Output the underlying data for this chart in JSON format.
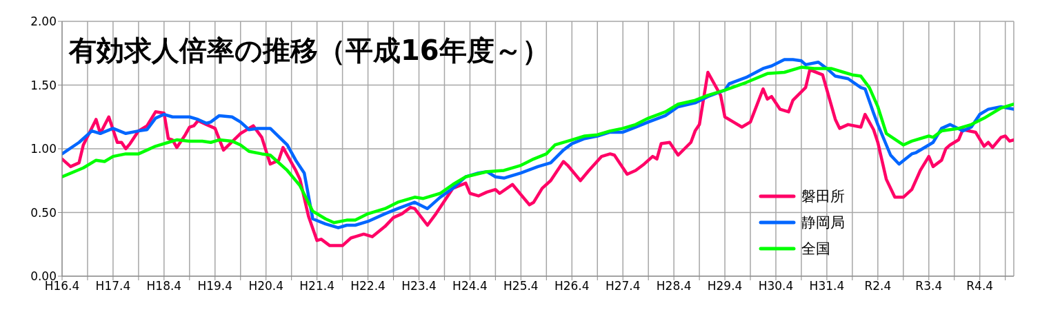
{
  "chart_data": {
    "type": "line",
    "title": "有効求人倍率の推移（平成16年度～）",
    "xlim": [
      "2004-04",
      "2022-12"
    ],
    "xticks": [
      {
        "value": "2004-04",
        "label": "H16.4"
      },
      {
        "value": "2004-10",
        "label": null
      },
      {
        "value": "2005-04",
        "label": "H17.4"
      },
      {
        "value": "2005-10",
        "label": null
      },
      {
        "value": "2006-04",
        "label": "H18.4"
      },
      {
        "value": "2006-10",
        "label": null
      },
      {
        "value": "2007-04",
        "label": "H19.4"
      },
      {
        "value": "2007-10",
        "label": null
      },
      {
        "value": "2008-04",
        "label": "H20.4"
      },
      {
        "value": "2008-10",
        "label": null
      },
      {
        "value": "2009-04",
        "label": "H21.4"
      },
      {
        "value": "2009-10",
        "label": null
      },
      {
        "value": "2010-04",
        "label": "H22.4"
      },
      {
        "value": "2010-10",
        "label": null
      },
      {
        "value": "2011-04",
        "label": "H23.4"
      },
      {
        "value": "2011-10",
        "label": null
      },
      {
        "value": "2012-04",
        "label": "H24.4"
      },
      {
        "value": "2012-10",
        "label": null
      },
      {
        "value": "2013-04",
        "label": "H25.4"
      },
      {
        "value": "2013-10",
        "label": null
      },
      {
        "value": "2014-04",
        "label": "H26.4"
      },
      {
        "value": "2014-10",
        "label": null
      },
      {
        "value": "2015-04",
        "label": "H27.4"
      },
      {
        "value": "2015-10",
        "label": null
      },
      {
        "value": "2016-04",
        "label": "H28.4"
      },
      {
        "value": "2016-10",
        "label": null
      },
      {
        "value": "2017-04",
        "label": "H29.4"
      },
      {
        "value": "2017-10",
        "label": null
      },
      {
        "value": "2018-04",
        "label": "H30.4"
      },
      {
        "value": "2018-10",
        "label": null
      },
      {
        "value": "2019-04",
        "label": "H31.4"
      },
      {
        "value": "2019-10",
        "label": null
      },
      {
        "value": "2020-04",
        "label": "R2.4"
      },
      {
        "value": "2020-10",
        "label": null
      },
      {
        "value": "2021-04",
        "label": "R3.4"
      },
      {
        "value": "2021-10",
        "label": null
      },
      {
        "value": "2022-04",
        "label": "R4.4"
      },
      {
        "value": "2022-10",
        "label": null
      }
    ],
    "ylim": [
      0,
      2
    ],
    "yticks": [
      {
        "value": 0,
        "label": "0.00"
      },
      {
        "value": 0.5,
        "label": "0.50"
      },
      {
        "value": 1,
        "label": "1.00"
      },
      {
        "value": 1.5,
        "label": "1.50"
      },
      {
        "value": 2,
        "label": "2.00"
      }
    ],
    "grid": true,
    "legend": "bottom right",
    "marker": "none",
    "line_style": "solid",
    "series": [
      {
        "name": "磐田所",
        "color": "#ff0066",
        "x": [
          "2004-04",
          "2004-06",
          "2004-08",
          "2004-09",
          "2004-12",
          "2005-01",
          "2005-03",
          "2005-05",
          "2005-06",
          "2005-07",
          "2005-08",
          "2005-10",
          "2005-12",
          "2006-02",
          "2006-04",
          "2006-05",
          "2006-06",
          "2006-07",
          "2006-09",
          "2006-10",
          "2006-11",
          "2006-12",
          "2007-02",
          "2007-04",
          "2007-06",
          "2007-10",
          "2007-11",
          "2008-01",
          "2008-03",
          "2008-05",
          "2008-07",
          "2008-08",
          "2008-11",
          "2008-12",
          "2009-02",
          "2009-04",
          "2009-05",
          "2009-07",
          "2009-10",
          "2009-12",
          "2010-01",
          "2010-03",
          "2010-05",
          "2010-08",
          "2010-10",
          "2010-12",
          "2011-02",
          "2011-03",
          "2011-06",
          "2011-08",
          "2011-10",
          "2011-12",
          "2012-03",
          "2012-04",
          "2012-06",
          "2012-08",
          "2012-10",
          "2012-11",
          "2013-02",
          "2013-06",
          "2013-07",
          "2013-09",
          "2013-11",
          "2014-02",
          "2014-03",
          "2014-06",
          "2014-08",
          "2014-11",
          "2015-01",
          "2015-02",
          "2015-05",
          "2015-07",
          "2015-09",
          "2015-11",
          "2015-12",
          "2016-01",
          "2016-03",
          "2016-05",
          "2016-08",
          "2016-09",
          "2016-10",
          "2016-12",
          "2017-03",
          "2017-04",
          "2017-06",
          "2017-08",
          "2017-10",
          "2018-01",
          "2018-02",
          "2018-03",
          "2018-05",
          "2018-07",
          "2018-08",
          "2018-11",
          "2018-12",
          "2019-03",
          "2019-06",
          "2019-07",
          "2019-09",
          "2019-12",
          "2020-01",
          "2020-03",
          "2020-04",
          "2020-06",
          "2020-08",
          "2020-10",
          "2020-12",
          "2021-02",
          "2021-04",
          "2021-05",
          "2021-07",
          "2021-08",
          "2021-09",
          "2021-11",
          "2021-12",
          "2022-03",
          "2022-05",
          "2022-06",
          "2022-07",
          "2022-09",
          "2022-10",
          "2022-11",
          "2022-12"
        ],
        "values": [
          0.92,
          0.86,
          0.89,
          1.03,
          1.23,
          1.12,
          1.25,
          1.05,
          1.05,
          1.0,
          1.04,
          1.14,
          1.18,
          1.29,
          1.28,
          1.08,
          1.07,
          1.01,
          1.11,
          1.17,
          1.18,
          1.22,
          1.19,
          1.16,
          0.99,
          1.12,
          1.14,
          1.18,
          1.09,
          0.88,
          0.91,
          1.01,
          0.83,
          0.76,
          0.47,
          0.28,
          0.29,
          0.24,
          0.24,
          0.3,
          0.31,
          0.33,
          0.31,
          0.39,
          0.46,
          0.49,
          0.54,
          0.53,
          0.4,
          0.49,
          0.59,
          0.69,
          0.73,
          0.65,
          0.63,
          0.66,
          0.68,
          0.65,
          0.72,
          0.56,
          0.58,
          0.69,
          0.75,
          0.9,
          0.87,
          0.75,
          0.83,
          0.94,
          0.96,
          0.95,
          0.8,
          0.83,
          0.88,
          0.94,
          0.92,
          1.04,
          1.05,
          0.95,
          1.05,
          1.14,
          1.19,
          1.6,
          1.42,
          1.25,
          1.21,
          1.17,
          1.21,
          1.47,
          1.39,
          1.41,
          1.31,
          1.29,
          1.38,
          1.48,
          1.62,
          1.58,
          1.23,
          1.16,
          1.19,
          1.17,
          1.27,
          1.15,
          1.05,
          0.76,
          0.62,
          0.62,
          0.68,
          0.83,
          0.94,
          0.86,
          0.91,
          1.0,
          1.03,
          1.07,
          1.15,
          1.13,
          1.02,
          1.05,
          1.01,
          1.09,
          1.1,
          1.06,
          1.07
        ]
      },
      {
        "name": "静岡局",
        "color": "#0066ff",
        "x": [
          "2004-04",
          "2004-08",
          "2004-11",
          "2005-01",
          "2005-04",
          "2005-07",
          "2005-10",
          "2005-12",
          "2006-02",
          "2006-04",
          "2006-06",
          "2006-10",
          "2006-12",
          "2007-02",
          "2007-03",
          "2007-05",
          "2007-08",
          "2007-10",
          "2007-12",
          "2008-02",
          "2008-05",
          "2008-09",
          "2008-11",
          "2009-01",
          "2009-03",
          "2009-06",
          "2009-09",
          "2009-11",
          "2010-01",
          "2010-04",
          "2010-08",
          "2010-11",
          "2011-03",
          "2011-06",
          "2011-09",
          "2011-12",
          "2012-03",
          "2012-06",
          "2012-08",
          "2012-10",
          "2012-12",
          "2013-04",
          "2013-08",
          "2013-11",
          "2014-02",
          "2014-04",
          "2014-07",
          "2014-10",
          "2015-01",
          "2015-04",
          "2015-07",
          "2015-10",
          "2016-02",
          "2016-05",
          "2016-09",
          "2016-12",
          "2017-04",
          "2017-05",
          "2017-09",
          "2018-01",
          "2018-03",
          "2018-06",
          "2018-08",
          "2018-10",
          "2018-11",
          "2019-02",
          "2019-04",
          "2019-06",
          "2019-09",
          "2019-12",
          "2020-01",
          "2020-03",
          "2020-04",
          "2020-07",
          "2020-09",
          "2020-12",
          "2021-01",
          "2021-04",
          "2021-05",
          "2021-07",
          "2021-09",
          "2021-12",
          "2022-02",
          "2022-04",
          "2022-06",
          "2022-09",
          "2022-12"
        ],
        "values": [
          0.96,
          1.05,
          1.14,
          1.12,
          1.16,
          1.12,
          1.14,
          1.15,
          1.24,
          1.27,
          1.25,
          1.25,
          1.23,
          1.2,
          1.21,
          1.26,
          1.25,
          1.21,
          1.15,
          1.16,
          1.16,
          1.03,
          0.91,
          0.81,
          0.45,
          0.41,
          0.38,
          0.4,
          0.4,
          0.43,
          0.49,
          0.53,
          0.58,
          0.53,
          0.62,
          0.69,
          0.78,
          0.81,
          0.82,
          0.78,
          0.77,
          0.81,
          0.86,
          0.89,
          0.99,
          1.04,
          1.08,
          1.1,
          1.13,
          1.13,
          1.17,
          1.21,
          1.26,
          1.33,
          1.36,
          1.41,
          1.46,
          1.51,
          1.56,
          1.63,
          1.65,
          1.7,
          1.7,
          1.69,
          1.66,
          1.68,
          1.63,
          1.57,
          1.55,
          1.48,
          1.47,
          1.28,
          1.19,
          0.95,
          0.88,
          0.96,
          0.97,
          1.03,
          1.05,
          1.16,
          1.19,
          1.14,
          1.17,
          1.27,
          1.31,
          1.33,
          1.31
        ]
      },
      {
        "name": "全国",
        "color": "#00ff00",
        "x": [
          "2004-04",
          "2004-09",
          "2004-12",
          "2005-02",
          "2005-04",
          "2005-07",
          "2005-10",
          "2005-12",
          "2006-02",
          "2006-05",
          "2006-07",
          "2006-10",
          "2007-01",
          "2007-03",
          "2007-05",
          "2007-08",
          "2007-10",
          "2007-12",
          "2008-03",
          "2008-05",
          "2008-09",
          "2008-12",
          "2009-03",
          "2009-06",
          "2009-08",
          "2009-11",
          "2010-01",
          "2010-04",
          "2010-08",
          "2010-11",
          "2011-03",
          "2011-05",
          "2011-09",
          "2011-12",
          "2012-03",
          "2012-08",
          "2012-12",
          "2013-04",
          "2013-07",
          "2013-10",
          "2013-12",
          "2014-04",
          "2014-07",
          "2014-10",
          "2015-01",
          "2015-04",
          "2015-07",
          "2015-10",
          "2016-02",
          "2016-05",
          "2016-09",
          "2016-12",
          "2017-04",
          "2017-09",
          "2018-02",
          "2018-06",
          "2018-10",
          "2019-01",
          "2019-05",
          "2019-08",
          "2019-10",
          "2019-12",
          "2020-02",
          "2020-04",
          "2020-06",
          "2020-10",
          "2020-12",
          "2021-04",
          "2021-05",
          "2021-07",
          "2021-11",
          "2022-02",
          "2022-05",
          "2022-09",
          "2022-12"
        ],
        "values": [
          0.78,
          0.85,
          0.91,
          0.9,
          0.94,
          0.96,
          0.96,
          0.99,
          1.02,
          1.05,
          1.07,
          1.06,
          1.06,
          1.05,
          1.07,
          1.06,
          1.03,
          0.98,
          0.96,
          0.95,
          0.83,
          0.71,
          0.51,
          0.45,
          0.42,
          0.44,
          0.44,
          0.49,
          0.53,
          0.58,
          0.62,
          0.61,
          0.65,
          0.72,
          0.78,
          0.82,
          0.83,
          0.87,
          0.92,
          0.96,
          1.03,
          1.07,
          1.1,
          1.11,
          1.14,
          1.16,
          1.19,
          1.24,
          1.29,
          1.35,
          1.38,
          1.42,
          1.46,
          1.52,
          1.59,
          1.6,
          1.64,
          1.63,
          1.63,
          1.6,
          1.58,
          1.57,
          1.48,
          1.33,
          1.12,
          1.03,
          1.06,
          1.1,
          1.09,
          1.14,
          1.16,
          1.19,
          1.24,
          1.32,
          1.35
        ]
      }
    ]
  }
}
